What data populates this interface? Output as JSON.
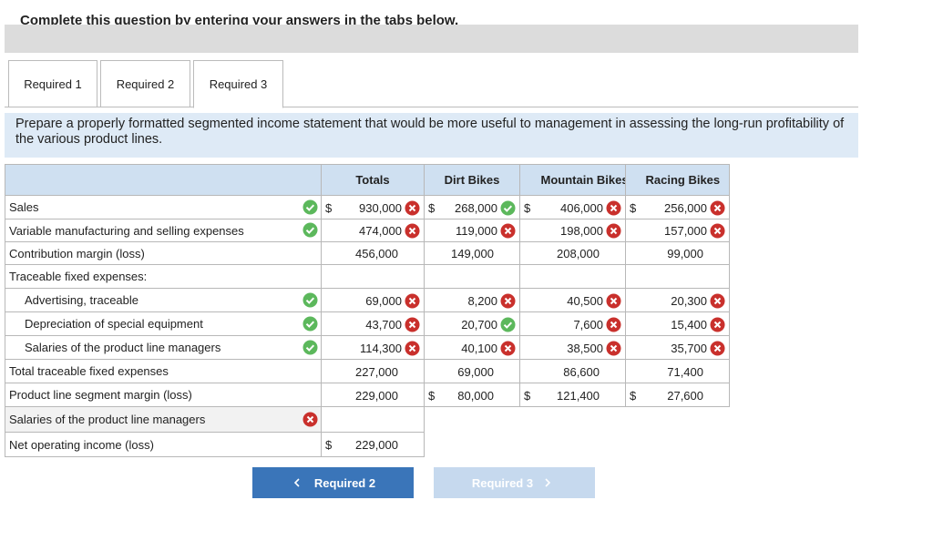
{
  "header": {
    "instruction": "Complete this question by entering your answers in the tabs below."
  },
  "tabs": [
    "Required 1",
    "Required 2",
    "Required 3"
  ],
  "active_tab": 2,
  "prompt": "Prepare a properly formatted segmented income statement that would be more useful to management in assessing the long-run profitability of the various product lines.",
  "table": {
    "columns": [
      "Totals",
      "Dirt Bikes",
      "Mountain Bikes",
      "Racing Bikes"
    ],
    "rows": [
      {
        "label": "Sales",
        "mark": "correct",
        "cells": [
          {
            "prefix": "$",
            "value": "930,000",
            "mark": "wrong"
          },
          {
            "prefix": "$",
            "value": "268,000",
            "mark": "correct"
          },
          {
            "prefix": "$",
            "value": "406,000",
            "mark": "wrong"
          },
          {
            "prefix": "$",
            "value": "256,000",
            "mark": "wrong"
          }
        ]
      },
      {
        "label": "Variable manufacturing and selling expenses",
        "mark": "correct",
        "cells": [
          {
            "value": "474,000",
            "mark": "wrong"
          },
          {
            "value": "119,000",
            "mark": "wrong"
          },
          {
            "value": "198,000",
            "mark": "wrong"
          },
          {
            "value": "157,000",
            "mark": "wrong"
          }
        ]
      },
      {
        "label": "Contribution margin (loss)",
        "cells": [
          {
            "value": "456,000"
          },
          {
            "value": "149,000"
          },
          {
            "value": "208,000"
          },
          {
            "value": "99,000"
          }
        ]
      },
      {
        "label": "Traceable fixed expenses:",
        "cells": [
          null,
          null,
          null,
          null
        ]
      },
      {
        "label": "Advertising, traceable",
        "indent": true,
        "mark": "correct",
        "cells": [
          {
            "value": "69,000",
            "mark": "wrong"
          },
          {
            "value": "8,200",
            "mark": "wrong"
          },
          {
            "value": "40,500",
            "mark": "wrong"
          },
          {
            "value": "20,300",
            "mark": "wrong"
          }
        ]
      },
      {
        "label": "Depreciation of special equipment",
        "indent": true,
        "mark": "correct",
        "cells": [
          {
            "value": "43,700",
            "mark": "wrong"
          },
          {
            "value": "20,700",
            "mark": "correct"
          },
          {
            "value": "7,600",
            "mark": "wrong"
          },
          {
            "value": "15,400",
            "mark": "wrong"
          }
        ]
      },
      {
        "label": "Salaries of the product line managers",
        "indent": true,
        "mark": "correct",
        "cells": [
          {
            "value": "114,300",
            "mark": "wrong"
          },
          {
            "value": "40,100",
            "mark": "wrong"
          },
          {
            "value": "38,500",
            "mark": "wrong"
          },
          {
            "value": "35,700",
            "mark": "wrong"
          }
        ]
      },
      {
        "label": "Total traceable fixed expenses",
        "cells": [
          {
            "value": "227,000"
          },
          {
            "value": "69,000"
          },
          {
            "value": "86,600"
          },
          {
            "value": "71,400"
          }
        ]
      },
      {
        "label": "Product line segment margin (loss)",
        "cells": [
          {
            "value": "229,000"
          },
          {
            "prefix": "$",
            "value": "80,000"
          },
          {
            "prefix": "$",
            "value": "121,400"
          },
          {
            "prefix": "$",
            "value": "27,600"
          }
        ]
      },
      {
        "label": "Salaries of the product line managers",
        "mark": "wrong",
        "cells": [
          null
        ]
      },
      {
        "label": "Net operating income (loss)",
        "cells": [
          {
            "prefix": "$",
            "value": "229,000"
          }
        ]
      }
    ]
  },
  "buttons": {
    "prev": "Required 2",
    "next": "Required 3"
  }
}
